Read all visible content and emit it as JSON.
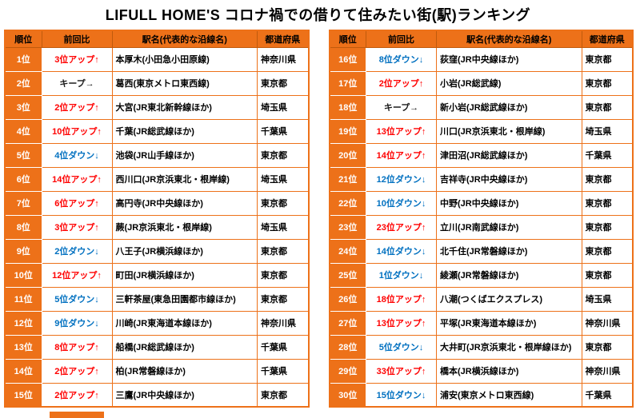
{
  "title": "LIFULL HOME'S コロナ禍での借りて住みたい街(駅)ランキング",
  "columns": [
    "順位",
    "前回比",
    "駅名(代表的な沿線名)",
    "都道府県"
  ],
  "colors": {
    "accent": "#ED7119",
    "up": "#FF0000",
    "down": "#0070C0",
    "keep": "#1A1A1A",
    "rank_text": "#FFFFFF",
    "header_text": "#000000"
  },
  "tables": [
    {
      "rows": [
        {
          "rank": "1位",
          "change": "3位アップ↑",
          "direction": "up",
          "station": "本厚木(小田急小田原線)",
          "prefecture": "神奈川県"
        },
        {
          "rank": "2位",
          "change": "キープ→",
          "direction": "keep",
          "station": "葛西(東京メトロ東西線)",
          "prefecture": "東京都"
        },
        {
          "rank": "3位",
          "change": "2位アップ↑",
          "direction": "up",
          "station": "大宮(JR東北新幹線ほか)",
          "prefecture": "埼玉県"
        },
        {
          "rank": "4位",
          "change": "10位アップ↑",
          "direction": "up",
          "station": "千葉(JR総武線ほか)",
          "prefecture": "千葉県"
        },
        {
          "rank": "5位",
          "change": "4位ダウン↓",
          "direction": "down",
          "station": "池袋(JR山手線ほか)",
          "prefecture": "東京都"
        },
        {
          "rank": "6位",
          "change": "14位アップ↑",
          "direction": "up",
          "station": "西川口(JR京浜東北・根岸線)",
          "prefecture": "埼玉県"
        },
        {
          "rank": "7位",
          "change": "6位アップ↑",
          "direction": "up",
          "station": "高円寺(JR中央線ほか)",
          "prefecture": "東京都"
        },
        {
          "rank": "8位",
          "change": "3位アップ↑",
          "direction": "up",
          "station": "蕨(JR京浜東北・根岸線)",
          "prefecture": "埼玉県"
        },
        {
          "rank": "9位",
          "change": "2位ダウン↓",
          "direction": "down",
          "station": "八王子(JR横浜線ほか)",
          "prefecture": "東京都"
        },
        {
          "rank": "10位",
          "change": "12位アップ↑",
          "direction": "up",
          "station": "町田(JR横浜線ほか)",
          "prefecture": "東京都"
        },
        {
          "rank": "11位",
          "change": "5位ダウン↓",
          "direction": "down",
          "station": "三軒茶屋(東急田園都市線ほか)",
          "prefecture": "東京都"
        },
        {
          "rank": "12位",
          "change": "9位ダウン↓",
          "direction": "down",
          "station": "川崎(JR東海道本線ほか)",
          "prefecture": "神奈川県"
        },
        {
          "rank": "13位",
          "change": "8位アップ↑",
          "direction": "up",
          "station": "船橋(JR総武線ほか)",
          "prefecture": "千葉県"
        },
        {
          "rank": "14位",
          "change": "2位アップ↑",
          "direction": "up",
          "station": "柏(JR常磐線ほか)",
          "prefecture": "千葉県"
        },
        {
          "rank": "15位",
          "change": "2位アップ↑",
          "direction": "up",
          "station": "三鷹(JR中央線ほか)",
          "prefecture": "東京都"
        }
      ]
    },
    {
      "rows": [
        {
          "rank": "16位",
          "change": "8位ダウン↓",
          "direction": "down",
          "station": "荻窪(JR中央線ほか)",
          "prefecture": "東京都"
        },
        {
          "rank": "17位",
          "change": "2位アップ↑",
          "direction": "up",
          "station": "小岩(JR総武線)",
          "prefecture": "東京都"
        },
        {
          "rank": "18位",
          "change": "キープ→",
          "direction": "keep",
          "station": "新小岩(JR総武線ほか)",
          "prefecture": "東京都"
        },
        {
          "rank": "19位",
          "change": "13位アップ↑",
          "direction": "up",
          "station": "川口(JR京浜東北・根岸線)",
          "prefecture": "埼玉県"
        },
        {
          "rank": "20位",
          "change": "14位アップ↑",
          "direction": "up",
          "station": "津田沼(JR総武線ほか)",
          "prefecture": "千葉県"
        },
        {
          "rank": "21位",
          "change": "12位ダウン↓",
          "direction": "down",
          "station": "吉祥寺(JR中央線ほか)",
          "prefecture": "東京都"
        },
        {
          "rank": "22位",
          "change": "10位ダウン↓",
          "direction": "down",
          "station": "中野(JR中央線ほか)",
          "prefecture": "東京都"
        },
        {
          "rank": "23位",
          "change": "23位アップ↑",
          "direction": "up",
          "station": "立川(JR南武線ほか)",
          "prefecture": "東京都"
        },
        {
          "rank": "24位",
          "change": "14位ダウン↓",
          "direction": "down",
          "station": "北千住(JR常磐線ほか)",
          "prefecture": "東京都"
        },
        {
          "rank": "25位",
          "change": "1位ダウン↓",
          "direction": "down",
          "station": "綾瀬(JR常磐線ほか)",
          "prefecture": "東京都"
        },
        {
          "rank": "26位",
          "change": "18位アップ↑",
          "direction": "up",
          "station": "八潮(つくばエクスプレス)",
          "prefecture": "埼玉県"
        },
        {
          "rank": "27位",
          "change": "13位アップ↑",
          "direction": "up",
          "station": "平塚(JR東海道本線ほか)",
          "prefecture": "神奈川県"
        },
        {
          "rank": "28位",
          "change": "5位ダウン↓",
          "direction": "down",
          "station": "大井町(JR京浜東北・根岸線ほか)",
          "prefecture": "東京都"
        },
        {
          "rank": "29位",
          "change": "33位アップ↑",
          "direction": "up",
          "station": "橋本(JR横浜線ほか)",
          "prefecture": "神奈川県"
        },
        {
          "rank": "30位",
          "change": "15位ダウン↓",
          "direction": "down",
          "station": "浦安(東京メトロ東西線)",
          "prefecture": "千葉県"
        }
      ]
    }
  ]
}
